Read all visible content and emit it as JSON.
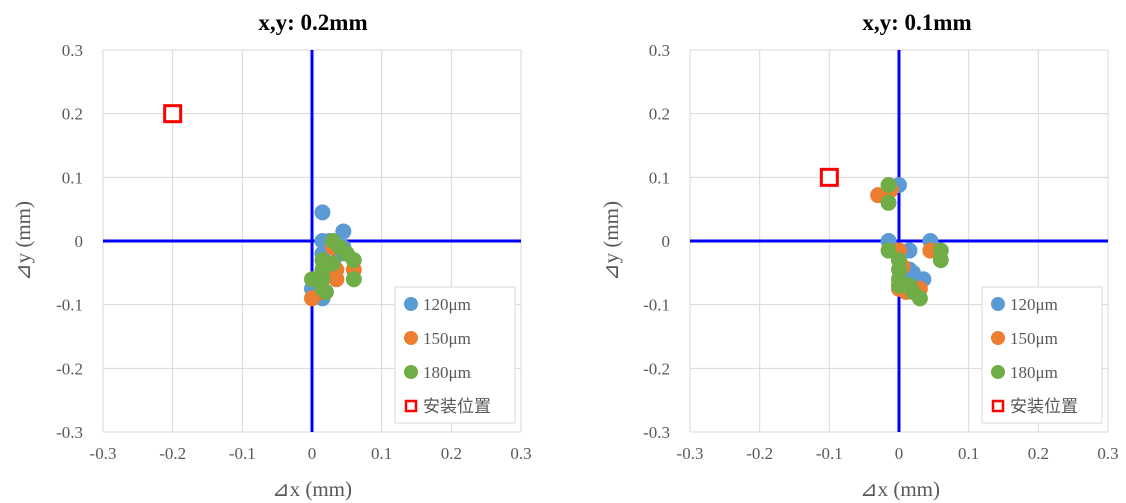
{
  "chart_data": [
    {
      "type": "scatter",
      "title": "x,y: 0.2mm",
      "xlabel": "⊿x (mm)",
      "ylabel": "⊿y (mm)",
      "xlim": [
        -0.3,
        0.3
      ],
      "ylim": [
        -0.3,
        0.3
      ],
      "x_ticks": [
        "-0.3",
        "-0.2",
        "-0.1",
        "0",
        "0.1",
        "0.2",
        "0.3"
      ],
      "y_ticks": [
        "0.3",
        "0.2",
        "0.1",
        "0",
        "-0.1",
        "-0.2",
        "-0.3"
      ],
      "grid": true,
      "legend_position": "bottom-right",
      "series": [
        {
          "name": "120μm",
          "color": "#5b9bd5",
          "marker": "circle",
          "points": [
            [
              0.015,
              0.045
            ],
            [
              0.045,
              0.015
            ],
            [
              0.015,
              0.0
            ],
            [
              0.025,
              0.0
            ],
            [
              0.045,
              -0.01
            ],
            [
              0.015,
              -0.02
            ],
            [
              0.04,
              -0.02
            ],
            [
              0.03,
              -0.04
            ],
            [
              0.015,
              -0.05
            ],
            [
              0.005,
              -0.065
            ],
            [
              0.0,
              -0.075
            ],
            [
              0.015,
              -0.09
            ]
          ]
        },
        {
          "name": "150μm",
          "color": "#ed7d31",
          "marker": "circle",
          "points": [
            [
              0.03,
              -0.01
            ],
            [
              0.035,
              -0.045
            ],
            [
              0.06,
              -0.045
            ],
            [
              0.035,
              -0.06
            ],
            [
              0.01,
              -0.06
            ],
            [
              0.015,
              -0.08
            ],
            [
              0.0,
              -0.09
            ]
          ]
        },
        {
          "name": "180μm",
          "color": "#70ad47",
          "marker": "circle",
          "points": [
            [
              0.03,
              0.0
            ],
            [
              0.04,
              -0.01
            ],
            [
              0.05,
              -0.02
            ],
            [
              0.06,
              -0.03
            ],
            [
              0.015,
              -0.03
            ],
            [
              0.03,
              -0.035
            ],
            [
              0.015,
              -0.045
            ],
            [
              0.06,
              -0.06
            ],
            [
              0.015,
              -0.06
            ],
            [
              0.0,
              -0.06
            ],
            [
              0.015,
              -0.075
            ],
            [
              0.02,
              -0.08
            ]
          ]
        },
        {
          "name": "安装位置",
          "color": "#ff0000",
          "marker": "square-open",
          "points": [
            [
              -0.2,
              0.2
            ]
          ]
        }
      ]
    },
    {
      "type": "scatter",
      "title": "x,y: 0.1mm",
      "xlabel": "⊿x (mm)",
      "ylabel": "⊿y (mm)",
      "xlim": [
        -0.3,
        0.3
      ],
      "ylim": [
        -0.3,
        0.3
      ],
      "x_ticks": [
        "-0.3",
        "-0.2",
        "-0.1",
        "0",
        "0.1",
        "0.2",
        "0.3"
      ],
      "y_ticks": [
        "0.3",
        "0.2",
        "0.1",
        "0",
        "-0.1",
        "-0.2",
        "-0.3"
      ],
      "grid": true,
      "legend_position": "bottom-right",
      "series": [
        {
          "name": "120μm",
          "color": "#5b9bd5",
          "marker": "circle",
          "points": [
            [
              0.0,
              0.088
            ],
            [
              -0.015,
              0.0
            ],
            [
              0.045,
              0.0
            ],
            [
              0.015,
              -0.015
            ],
            [
              0.0,
              -0.03
            ],
            [
              0.015,
              -0.045
            ],
            [
              0.02,
              -0.05
            ],
            [
              0.035,
              -0.06
            ],
            [
              0.005,
              -0.07
            ],
            [
              0.025,
              -0.075
            ]
          ]
        },
        {
          "name": "150μm",
          "color": "#ed7d31",
          "marker": "circle",
          "points": [
            [
              -0.03,
              0.072
            ],
            [
              -0.012,
              0.08
            ],
            [
              0.045,
              -0.015
            ],
            [
              0.0,
              -0.015
            ],
            [
              0.005,
              -0.04
            ],
            [
              0.03,
              -0.075
            ],
            [
              0.0,
              -0.075
            ],
            [
              0.01,
              -0.08
            ]
          ]
        },
        {
          "name": "180μm",
          "color": "#70ad47",
          "marker": "circle",
          "points": [
            [
              -0.015,
              0.088
            ],
            [
              -0.015,
              0.06
            ],
            [
              -0.015,
              -0.015
            ],
            [
              0.06,
              -0.015
            ],
            [
              0.06,
              -0.03
            ],
            [
              0.0,
              -0.03
            ],
            [
              0.0,
              -0.045
            ],
            [
              0.0,
              -0.06
            ],
            [
              0.015,
              -0.07
            ],
            [
              0.0,
              -0.07
            ],
            [
              0.02,
              -0.08
            ],
            [
              0.03,
              -0.09
            ]
          ]
        },
        {
          "name": "安装位置",
          "color": "#ff0000",
          "marker": "square-open",
          "points": [
            [
              -0.1,
              0.1
            ]
          ]
        }
      ]
    }
  ]
}
